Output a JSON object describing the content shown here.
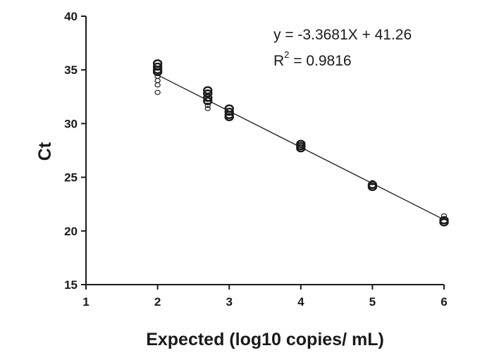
{
  "chart_data": {
    "type": "scatter",
    "title": "",
    "xlabel": "Expected (log10 copies/ mL)",
    "ylabel": "Ct",
    "xlim": [
      1,
      6
    ],
    "ylim": [
      15,
      40
    ],
    "xticks": [
      "1",
      "2",
      "3",
      "4",
      "5",
      "6"
    ],
    "yticks": [
      "15",
      "20",
      "25",
      "30",
      "35",
      "40"
    ],
    "grid": false,
    "series": [
      {
        "points": [
          {
            "x": 2,
            "y": 35.6,
            "size": "large"
          },
          {
            "x": 2,
            "y": 35.3,
            "size": "large"
          },
          {
            "x": 2,
            "y": 35.0,
            "size": "large"
          },
          {
            "x": 2,
            "y": 34.8,
            "size": "large"
          },
          {
            "x": 2,
            "y": 34.4,
            "size": "small"
          },
          {
            "x": 2,
            "y": 34.0,
            "size": "small"
          },
          {
            "x": 2,
            "y": 33.6,
            "size": "small"
          },
          {
            "x": 2,
            "y": 32.9,
            "size": "small"
          },
          {
            "x": 2.7,
            "y": 33.1,
            "size": "large"
          },
          {
            "x": 2.7,
            "y": 32.8,
            "size": "large"
          },
          {
            "x": 2.7,
            "y": 32.4,
            "size": "large"
          },
          {
            "x": 2.7,
            "y": 32.1,
            "size": "large"
          },
          {
            "x": 2.7,
            "y": 31.7,
            "size": "small"
          },
          {
            "x": 2.7,
            "y": 31.4,
            "size": "small"
          },
          {
            "x": 3,
            "y": 31.4,
            "size": "large"
          },
          {
            "x": 3,
            "y": 31.1,
            "size": "large"
          },
          {
            "x": 3,
            "y": 30.8,
            "size": "large"
          },
          {
            "x": 3,
            "y": 30.6,
            "size": "large"
          },
          {
            "x": 4,
            "y": 28.1,
            "size": "large"
          },
          {
            "x": 4,
            "y": 27.9,
            "size": "large"
          },
          {
            "x": 4,
            "y": 27.7,
            "size": "large"
          },
          {
            "x": 5,
            "y": 24.5,
            "size": "small"
          },
          {
            "x": 5,
            "y": 24.3,
            "size": "large"
          },
          {
            "x": 5,
            "y": 24.1,
            "size": "large"
          },
          {
            "x": 6,
            "y": 21.4,
            "size": "small"
          },
          {
            "x": 6,
            "y": 21.0,
            "size": "large"
          },
          {
            "x": 6,
            "y": 20.8,
            "size": "large"
          }
        ]
      }
    ],
    "fit": {
      "x_start": 2,
      "x_end": 6,
      "equation": "y = -3.3681X + 41.26",
      "r2_label": "R",
      "r2_exponent": "2",
      "r2_value": " = 0.9816"
    }
  }
}
